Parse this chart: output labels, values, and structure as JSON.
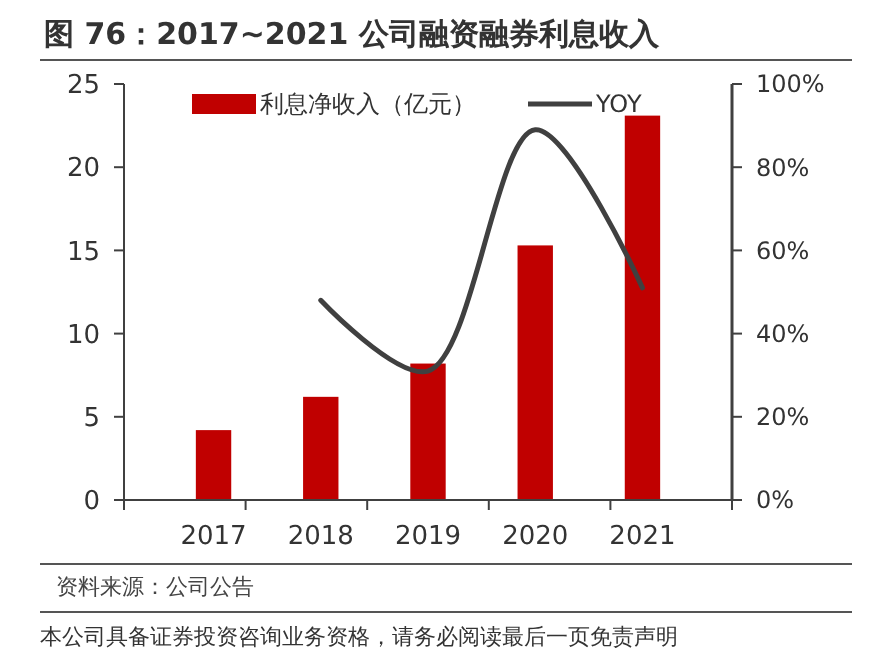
{
  "chart_data": {
    "type": "bar",
    "title": "图 76：2017~2021 公司融资融券利息收入",
    "categories": [
      "2017",
      "2018",
      "2019",
      "2020",
      "2021"
    ],
    "series": [
      {
        "name": "利息净收入（亿元）",
        "color": "#c00000",
        "values": [
          4.2,
          6.2,
          8.2,
          15.3,
          23.1
        ]
      },
      {
        "name": "YOY",
        "type": "line",
        "axis": "y2",
        "color": "#404040",
        "values": [
          null,
          48,
          31,
          89,
          51
        ]
      }
    ],
    "ylim": [
      0,
      25
    ],
    "yticks": [
      0,
      5,
      10,
      15,
      20,
      25
    ],
    "y2lim": [
      0,
      100
    ],
    "y2ticks": [
      {
        "value": 0,
        "label": "0%"
      },
      {
        "value": 20,
        "label": "20%"
      },
      {
        "value": 40,
        "label": "40%"
      },
      {
        "value": 60,
        "label": "60%"
      },
      {
        "value": 80,
        "label": "80%"
      },
      {
        "value": 100,
        "label": "100%"
      }
    ],
    "legend": "top",
    "grid": false,
    "marker": "none",
    "line_style": "solid",
    "annotations": [
      "资料来源：公司公告",
      "本公司具备证券投资咨询业务资格，请务必阅读最后一页免责声明"
    ]
  }
}
